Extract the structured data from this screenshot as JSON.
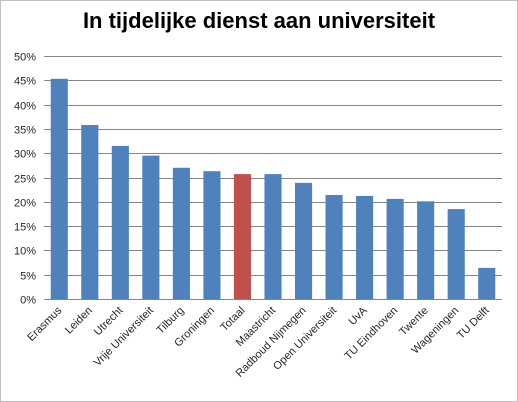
{
  "chart_data": {
    "type": "bar",
    "title": "In tijdelijke dienst aan universiteit",
    "categories": [
      "Erasmus",
      "Leiden",
      "Utrecht",
      "Vrije Universiteit",
      "Tilburg",
      "Groningen",
      "Totaal",
      "Maastricht",
      "Radboud Nijmegen",
      "Open Universiteit",
      "UvA",
      "TU Eindhoven",
      "Twente",
      "Wageningen",
      "TU Delft"
    ],
    "values": [
      45.3,
      35.8,
      31.5,
      29.5,
      27.0,
      26.3,
      25.7,
      25.7,
      23.9,
      21.4,
      21.2,
      20.6,
      20.1,
      18.5,
      6.4
    ],
    "ylim": [
      0,
      50
    ],
    "yticks": [
      "0%",
      "5%",
      "10%",
      "15%",
      "20%",
      "25%",
      "30%",
      "35%",
      "40%",
      "45%",
      "50%"
    ],
    "grid": true,
    "colors": {
      "bar": "#4f81bd",
      "highlight": "#c0504d",
      "highlight_category": "Totaal",
      "grid": "#868686"
    }
  }
}
